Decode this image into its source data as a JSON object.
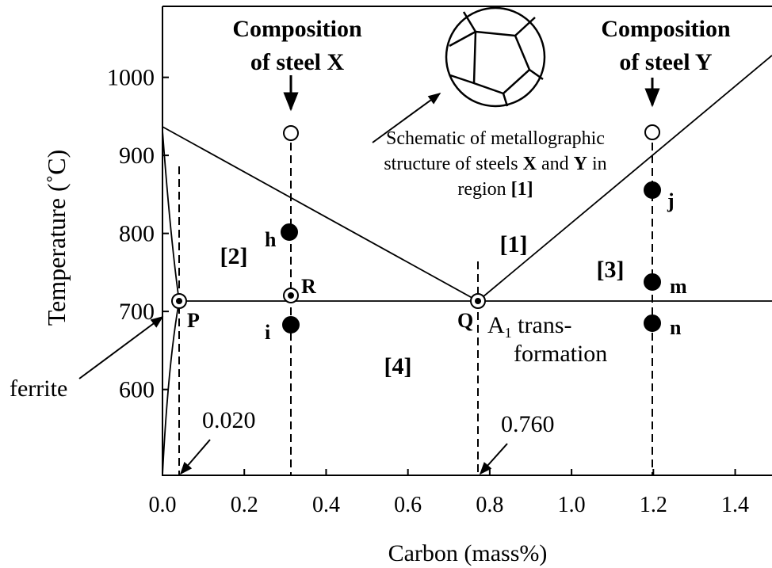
{
  "axes": {
    "x": {
      "label": "Carbon (mass%)",
      "lim": [
        0,
        1.49
      ],
      "ticks": [
        {
          "value": 0,
          "label": "0.0"
        },
        {
          "value": 0.2,
          "label": "0.2"
        },
        {
          "value": 0.4,
          "label": "0.4"
        },
        {
          "value": 0.6,
          "label": "0.6"
        },
        {
          "value": 0.8,
          "label": "0.8"
        },
        {
          "value": 1,
          "label": "1.0"
        },
        {
          "value": 1.2,
          "label": "1.2"
        },
        {
          "value": 1.4,
          "label": "1.4"
        }
      ]
    },
    "y": {
      "label": "Temperature (˚C)",
      "lim": [
        490,
        1091
      ],
      "ticks": [
        600,
        700,
        800,
        900,
        1000
      ]
    }
  },
  "headings": {
    "steel_x": [
      "Composition",
      "of steel X"
    ],
    "steel_y": [
      "Composition",
      "of steel Y"
    ]
  },
  "caption": {
    "line1": "Schematic of metallographic",
    "line2": [
      "structure of steels ",
      "X",
      " and ",
      "Y",
      " in"
    ],
    "line3": [
      "region ",
      "[1]"
    ]
  },
  "regions": [
    "[1]",
    "[2]",
    "[3]",
    "[4]"
  ],
  "points": {
    "h": "h",
    "i": "i",
    "j": "j",
    "m": "m",
    "n": "n",
    "P": "P",
    "Q": "Q",
    "R": "R"
  },
  "transformation": {
    "A": "A",
    "sub": "1",
    "rest": " trans-",
    "line2": "formation"
  },
  "ferrite": "ferrite",
  "compositions": [
    "0.020",
    "0.760"
  ]
}
